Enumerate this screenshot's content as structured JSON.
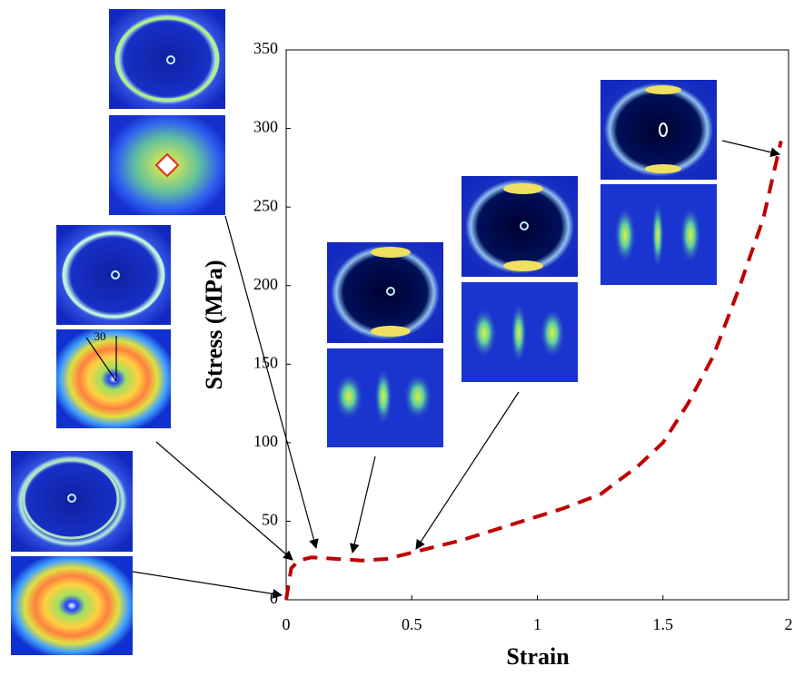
{
  "chart_data": {
    "type": "line",
    "xlabel": "Strain",
    "ylabel": "Stress (MPa)",
    "x": [
      0,
      0.01,
      0.02,
      0.05,
      0.1,
      0.2,
      0.3,
      0.4,
      0.5,
      0.7,
      0.9,
      1.1,
      1.25,
      1.4,
      1.5,
      1.6,
      1.7,
      1.8,
      1.9,
      1.97
    ],
    "values": [
      0,
      10,
      20,
      25,
      27,
      26,
      25,
      26,
      30,
      38,
      48,
      58,
      67,
      85,
      100,
      125,
      155,
      197,
      243,
      292
    ],
    "color": "#c00000",
    "dashed": true,
    "xlim": [
      0,
      2
    ],
    "ylim": [
      0,
      350
    ],
    "xticks": [
      0,
      0.5,
      1,
      1.5,
      2
    ],
    "yticks": [
      0,
      50,
      100,
      150,
      200,
      250,
      300,
      350
    ],
    "annotations": [
      "30"
    ]
  }
}
